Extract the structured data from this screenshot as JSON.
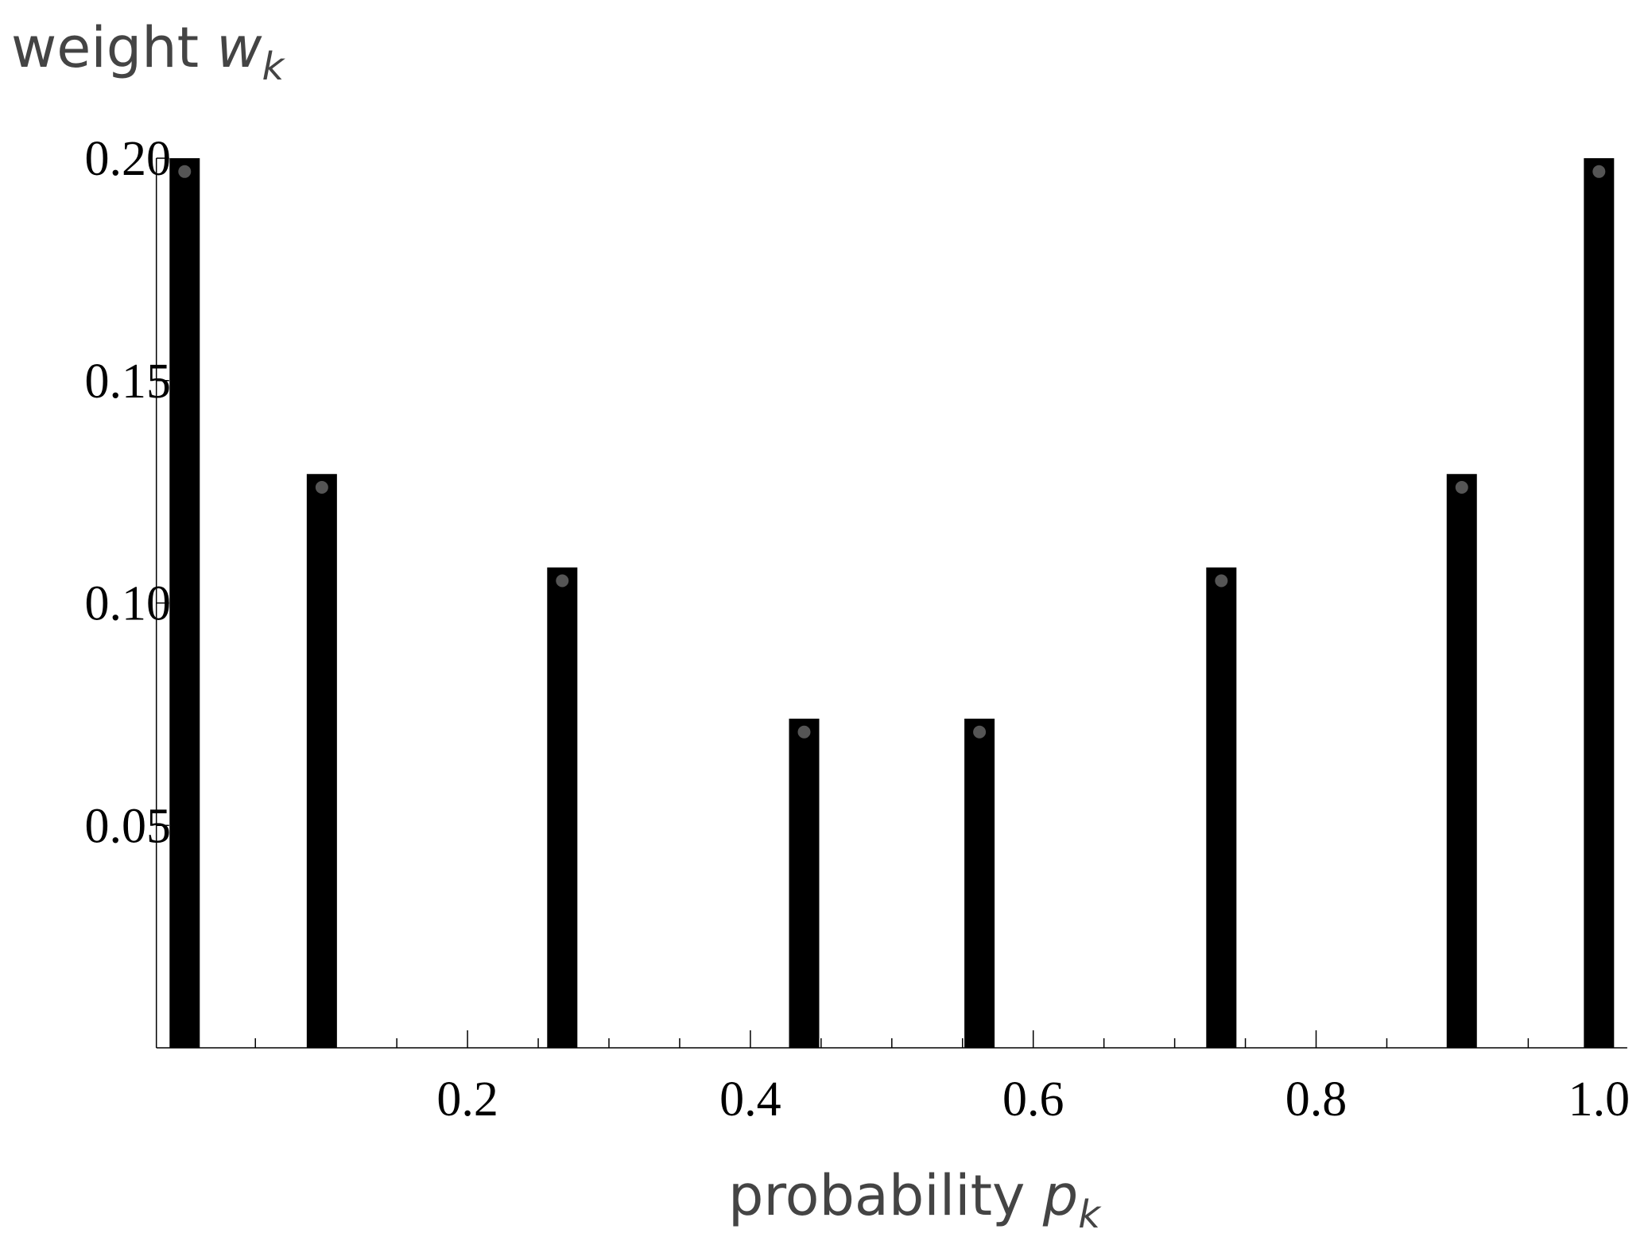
{
  "chart_data": {
    "type": "bar",
    "ylabel": {
      "text": "weight",
      "var": "w",
      "sub": "k"
    },
    "xlabel": {
      "text": "probability",
      "var": "p",
      "sub": "k"
    },
    "x": [
      0.0,
      0.097,
      0.267,
      0.438,
      0.562,
      0.733,
      0.903,
      1.0
    ],
    "series": [
      {
        "color": "#000000",
        "values": [
          0.2,
          0.129,
          0.108,
          0.074,
          0.074,
          0.108,
          0.129,
          0.2
        ]
      },
      {
        "color": "#555555",
        "values": [
          0.197,
          0.126,
          0.105,
          0.071,
          0.071,
          0.105,
          0.126,
          0.197
        ]
      }
    ],
    "xlim": [
      -0.02,
      1.02
    ],
    "ylim": [
      0,
      0.2
    ],
    "xticks": [
      0.2,
      0.4,
      0.6,
      0.8,
      {
        "value": 1.0,
        "label": "1.0"
      }
    ],
    "x_minor_ticks": [
      0.05,
      0.1,
      0.15,
      0.25,
      0.3,
      0.35,
      0.45,
      0.5,
      0.55,
      0.65,
      0.7,
      0.75,
      0.85,
      0.9,
      0.95
    ],
    "yticks": [
      {
        "value": 0.05,
        "label": "0.05"
      },
      {
        "value": 0.1,
        "label": "0.10"
      },
      {
        "value": 0.15,
        "label": "0.15"
      },
      {
        "value": 0.2,
        "label": "0.20"
      }
    ]
  }
}
